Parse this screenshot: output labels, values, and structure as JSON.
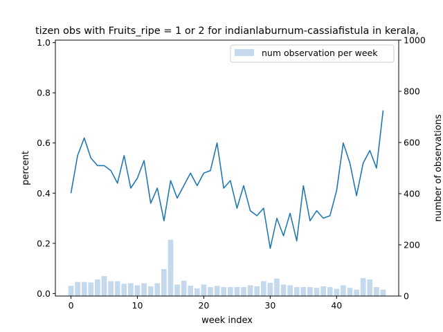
{
  "chart_data": {
    "type": "line+bar",
    "title": "tizen obs with Fruits_ripe = 1 or 2 for indianlaburnum-cassiafistula in kerala,",
    "xlabel": "week index",
    "ylabel": "percent",
    "y2label": "number of observations",
    "xlim": [
      -2.35,
      49.35
    ],
    "ylim": [
      -0.01,
      1.01
    ],
    "y2lim": [
      0,
      1000
    ],
    "xticks": [
      0,
      10,
      20,
      30,
      40
    ],
    "xtick_labels": [
      "0",
      "10",
      "20",
      "30",
      "40"
    ],
    "yticks": [
      0.0,
      0.2,
      0.4,
      0.6,
      0.8,
      1.0
    ],
    "ytick_labels": [
      "0.0",
      "0.2",
      "0.4",
      "0.6",
      "0.8",
      "1.0"
    ],
    "y2ticks": [
      0,
      200,
      400,
      600,
      800,
      1000
    ],
    "y2tick_labels": [
      "0",
      "200",
      "400",
      "600",
      "800",
      "1000"
    ],
    "legend": {
      "label": "num observation per week",
      "placement": "top-right"
    },
    "colors": {
      "line": "#1f77b4",
      "bars": "#c5d9ec",
      "axis": "#000000"
    },
    "x": [
      0,
      1,
      2,
      3,
      4,
      5,
      6,
      7,
      8,
      9,
      10,
      11,
      12,
      13,
      14,
      15,
      16,
      17,
      18,
      19,
      20,
      21,
      22,
      23,
      24,
      25,
      26,
      27,
      28,
      29,
      30,
      31,
      32,
      33,
      34,
      35,
      36,
      37,
      38,
      39,
      40,
      41,
      42,
      43,
      44,
      45,
      46,
      47
    ],
    "percent": [
      0.4,
      0.55,
      0.62,
      0.54,
      0.51,
      0.51,
      0.49,
      0.44,
      0.55,
      0.42,
      0.46,
      0.53,
      0.36,
      0.42,
      0.29,
      0.45,
      0.38,
      0.43,
      0.48,
      0.43,
      0.48,
      0.49,
      0.6,
      0.42,
      0.45,
      0.34,
      0.43,
      0.33,
      0.31,
      0.34,
      0.18,
      0.3,
      0.23,
      0.32,
      0.21,
      0.43,
      0.29,
      0.33,
      0.3,
      0.31,
      0.41,
      0.6,
      0.52,
      0.39,
      0.52,
      0.57,
      0.5,
      0.73
    ],
    "observations": [
      40,
      55,
      55,
      53,
      65,
      78,
      58,
      58,
      48,
      50,
      42,
      50,
      38,
      50,
      105,
      220,
      45,
      60,
      40,
      30,
      45,
      35,
      40,
      35,
      35,
      35,
      35,
      42,
      38,
      58,
      52,
      68,
      45,
      42,
      35,
      35,
      35,
      32,
      38,
      35,
      28,
      42,
      32,
      25,
      70,
      65,
      35,
      25
    ]
  }
}
